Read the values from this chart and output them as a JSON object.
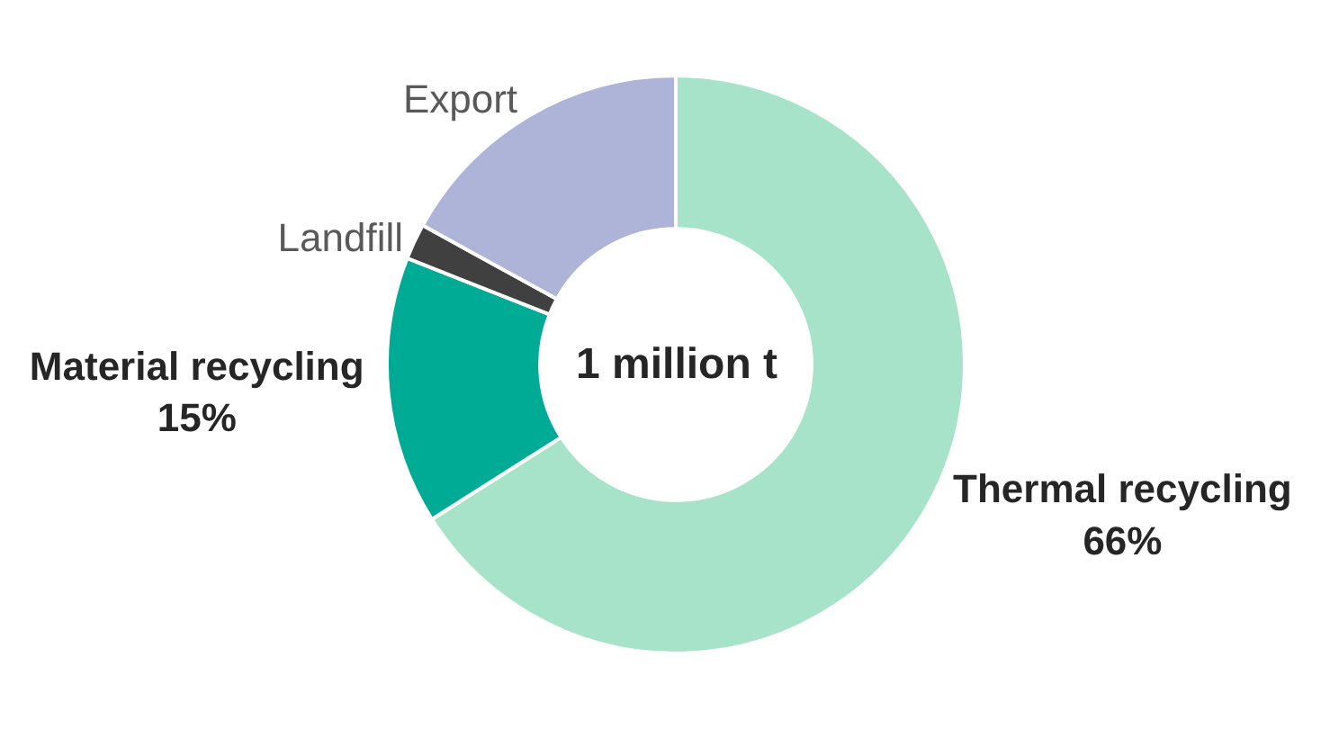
{
  "chart_data": {
    "type": "donut",
    "categories": [
      "Thermal recycling",
      "Material recycling",
      "Landfill",
      "Export"
    ],
    "values": [
      66,
      15,
      2,
      17
    ],
    "value_labels": [
      "66%",
      "15%",
      null,
      null
    ],
    "colors": [
      "#a6e3c9",
      "#00ab96",
      "#404040",
      "#aeb4d8"
    ],
    "annotations": [
      "1 million t"
    ],
    "legend": false
  }
}
